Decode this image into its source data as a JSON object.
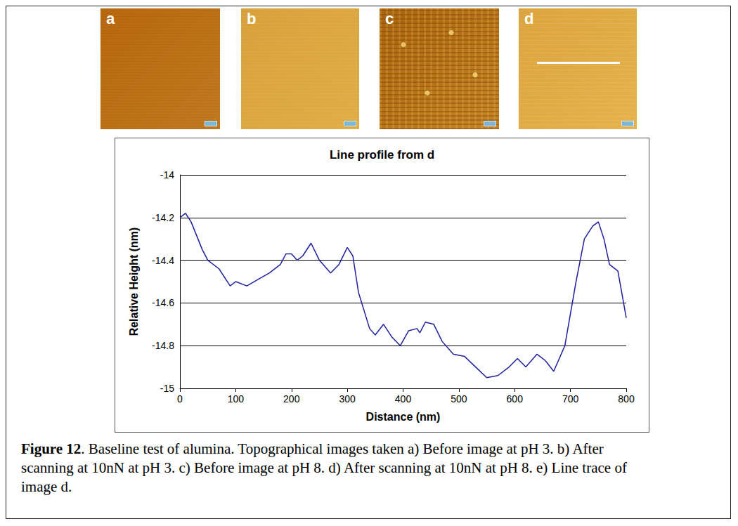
{
  "panels": [
    {
      "label": "a"
    },
    {
      "label": "b"
    },
    {
      "label": "c"
    },
    {
      "label": "d"
    }
  ],
  "chart_data": {
    "type": "line",
    "title": "Line profile from d",
    "x_label": "Distance (nm)",
    "y_label": "Relative Height (nm)",
    "x": [
      0,
      10,
      20,
      40,
      50,
      70,
      90,
      100,
      120,
      140,
      160,
      180,
      190,
      200,
      210,
      220,
      235,
      250,
      270,
      285,
      300,
      310,
      320,
      340,
      350,
      365,
      380,
      395,
      410,
      425,
      430,
      440,
      455,
      470,
      490,
      510,
      530,
      550,
      570,
      590,
      605,
      620,
      640,
      655,
      670,
      690,
      710,
      725,
      740,
      750,
      760,
      770,
      785,
      800
    ],
    "values": [
      -14.2,
      -14.18,
      -14.22,
      -14.35,
      -14.4,
      -14.44,
      -14.52,
      -14.5,
      -14.52,
      -14.49,
      -14.46,
      -14.42,
      -14.37,
      -14.37,
      -14.4,
      -14.38,
      -14.32,
      -14.4,
      -14.46,
      -14.42,
      -14.34,
      -14.38,
      -14.55,
      -14.72,
      -14.75,
      -14.7,
      -14.76,
      -14.8,
      -14.73,
      -14.72,
      -14.74,
      -14.69,
      -14.7,
      -14.78,
      -14.84,
      -14.85,
      -14.9,
      -14.95,
      -14.94,
      -14.9,
      -14.86,
      -14.9,
      -14.84,
      -14.87,
      -14.92,
      -14.8,
      -14.5,
      -14.3,
      -14.24,
      -14.22,
      -14.3,
      -14.42,
      -14.45,
      -14.67
    ],
    "color": "#1f1f9f",
    "xlim": [
      0,
      800
    ],
    "xticks": [
      0,
      100,
      200,
      300,
      400,
      500,
      600,
      700,
      800
    ],
    "ylim": [
      -15,
      -14
    ],
    "yticks": [
      -15,
      -14.8,
      -14.6,
      -14.4,
      -14.2,
      -14
    ],
    "grid": true
  },
  "caption": {
    "label": "Figure 12",
    "text": ". Baseline test of alumina. Topographical images taken a) Before image at pH 3. b) After scanning at 10nN at pH 3. c) Before image at pH 8. d) After scanning at 10nN at pH 8. e) Line trace of image d."
  }
}
